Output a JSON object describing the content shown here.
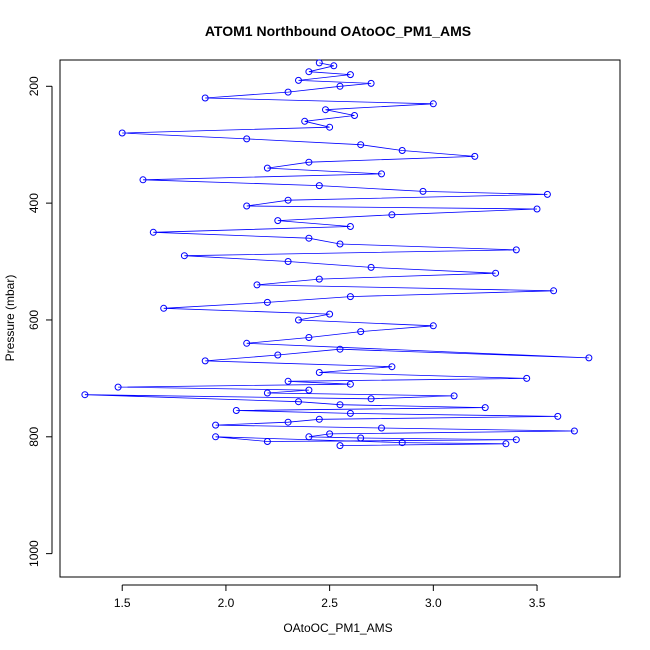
{
  "chart_data": {
    "type": "line",
    "title": "ATOM1 Northbound OAtoOC_PM1_AMS",
    "xlabel": "OAtoOC_PM1_AMS",
    "ylabel": "Pressure (mbar)",
    "xlim": [
      1.2,
      3.9
    ],
    "ylim": [
      1040,
      155
    ],
    "y_reversed": true,
    "x_ticks": [
      1.5,
      2.0,
      2.5,
      3.0,
      3.5
    ],
    "x_tick_labels": [
      "1.5",
      "2.0",
      "2.5",
      "3.0",
      "3.5"
    ],
    "y_ticks": [
      200,
      400,
      600,
      800,
      1000
    ],
    "y_tick_labels": [
      "200",
      "400",
      "600",
      "800",
      "1000"
    ],
    "grid": false,
    "legend": "none",
    "series": [
      {
        "color": "#0000ff",
        "marker": "open-circle",
        "x": [
          2.45,
          2.52,
          2.4,
          2.6,
          2.35,
          2.7,
          2.55,
          2.3,
          1.9,
          3.0,
          2.48,
          2.62,
          2.38,
          2.5,
          1.5,
          2.1,
          2.65,
          2.85,
          3.2,
          2.4,
          2.2,
          2.75,
          1.6,
          2.45,
          2.95,
          3.55,
          2.3,
          2.1,
          3.5,
          2.8,
          2.25,
          2.6,
          1.65,
          2.4,
          2.55,
          3.4,
          1.8,
          2.3,
          2.7,
          3.3,
          2.45,
          2.15,
          3.58,
          2.6,
          2.2,
          1.7,
          2.5,
          2.35,
          3.0,
          2.65,
          2.4,
          2.1,
          3.75,
          2.55,
          2.25,
          1.9,
          2.8,
          2.45,
          3.45,
          2.3,
          2.6,
          1.48,
          2.4,
          2.2,
          3.1,
          2.7,
          1.32,
          2.35,
          2.55,
          3.25,
          2.05,
          2.6,
          3.6,
          2.45,
          2.3,
          1.95,
          2.75,
          3.68,
          2.5,
          2.4,
          2.65,
          3.4,
          2.2,
          1.95,
          2.85,
          3.35,
          2.55
        ],
        "y": [
          160,
          165,
          175,
          180,
          190,
          195,
          200,
          210,
          220,
          230,
          240,
          250,
          260,
          270,
          280,
          290,
          300,
          310,
          320,
          330,
          340,
          350,
          360,
          370,
          380,
          385,
          395,
          405,
          410,
          420,
          430,
          440,
          450,
          460,
          470,
          480,
          490,
          500,
          510,
          520,
          530,
          540,
          550,
          560,
          570,
          580,
          590,
          600,
          610,
          620,
          630,
          640,
          665,
          650,
          660,
          670,
          680,
          690,
          700,
          705,
          710,
          715,
          720,
          725,
          730,
          735,
          728,
          740,
          745,
          750,
          755,
          760,
          765,
          770,
          775,
          780,
          785,
          790,
          795,
          800,
          802,
          805,
          808,
          800,
          810,
          812,
          815
        ]
      }
    ]
  }
}
